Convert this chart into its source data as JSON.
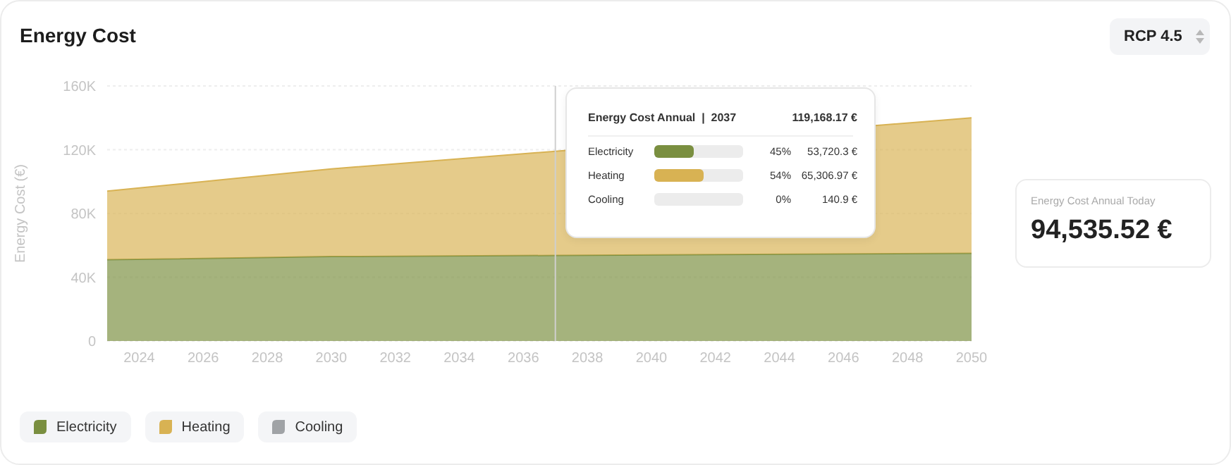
{
  "chart_data": {
    "type": "area",
    "title": "Energy Cost",
    "ylabel": "Energy Cost (€)",
    "stacked": true,
    "grid": "y",
    "legend": "bottom left",
    "x": [
      2023,
      2030,
      2037,
      2050
    ],
    "xlim": [
      2023,
      2050
    ],
    "xticks": [
      2024,
      2026,
      2028,
      2030,
      2032,
      2034,
      2036,
      2038,
      2040,
      2042,
      2044,
      2046,
      2048,
      2050
    ],
    "ylim": [
      0,
      160000
    ],
    "yticks": [
      0,
      {
        "value": 40000,
        "label": "40K"
      },
      {
        "value": 80000,
        "label": "80K"
      },
      {
        "value": 120000,
        "label": "120K"
      },
      {
        "value": 160000,
        "label": "160K"
      }
    ],
    "series": [
      {
        "name": "Electricity",
        "color": "#7a8f40",
        "values": [
          51000,
          53000,
          53700,
          55000
        ]
      },
      {
        "name": "Heating",
        "color": "#d8b253",
        "values": [
          43000,
          55000,
          65300,
          85000
        ]
      },
      {
        "name": "Cooling",
        "color": "#a0a3a6",
        "values": [
          null,
          null,
          null,
          null
        ]
      }
    ],
    "ref_lines": [
      {
        "axis": "x",
        "value": 2037,
        "color": "#cfcfcf"
      }
    ],
    "annotations": [
      "RCP 4.5",
      "Energy Cost Annual Today",
      "94,535.52 €",
      "Energy Cost Annual  |  2037",
      "119,168.17 €",
      "45%",
      "54%",
      "0%",
      "53,720.3 €",
      "65,306.97 €",
      "140.9 €"
    ]
  }
}
